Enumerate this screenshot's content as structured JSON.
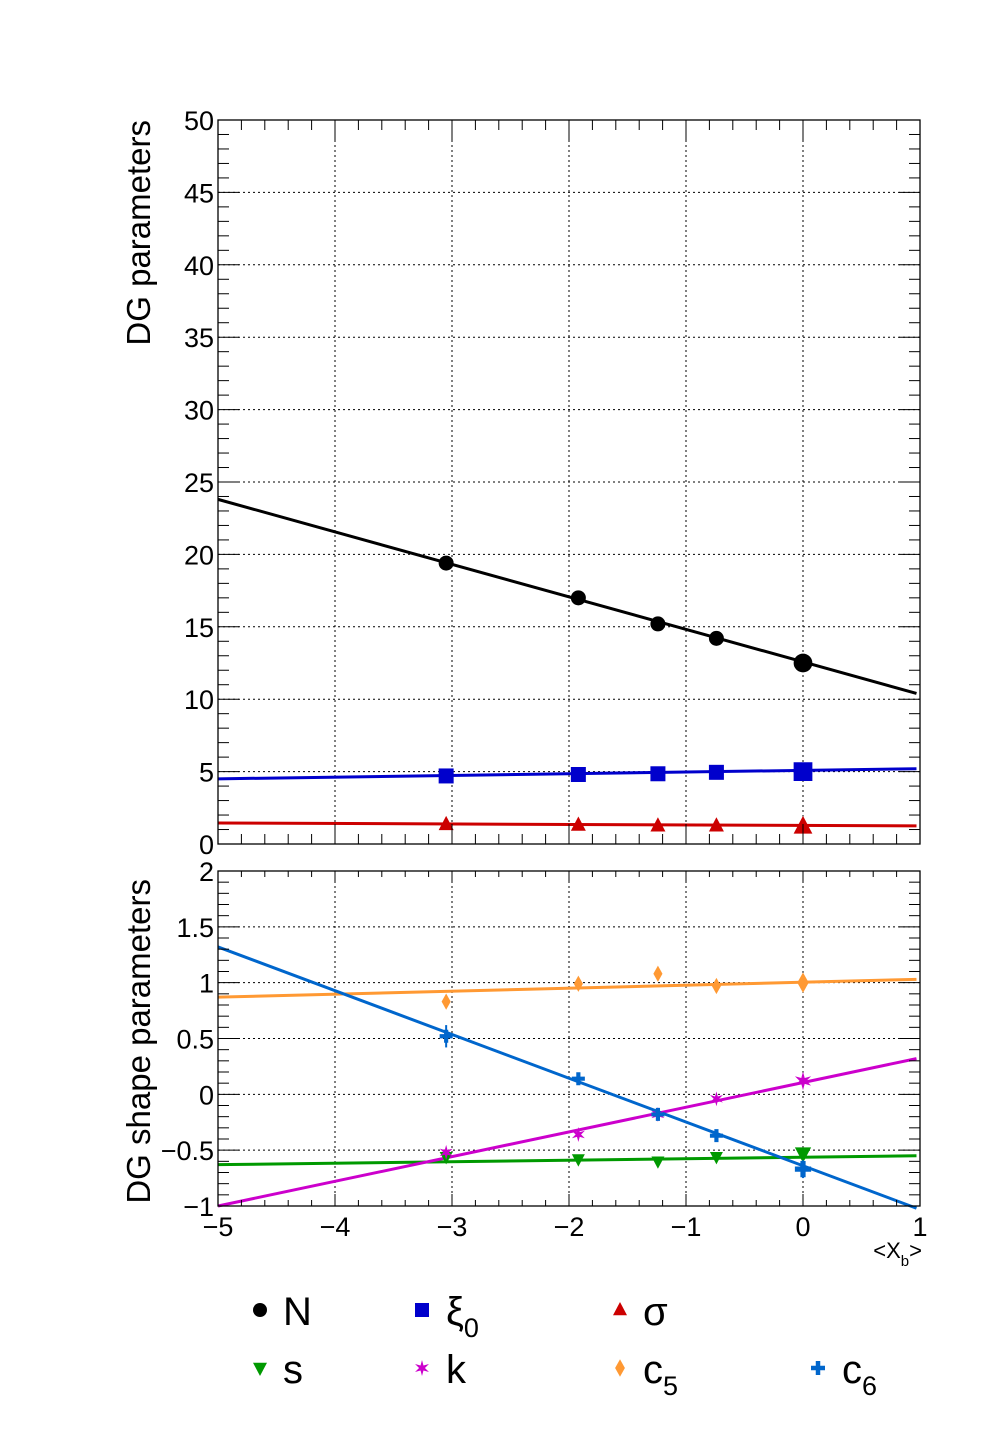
{
  "chart_data": [
    {
      "type": "scatter",
      "ylabel": "DG parameters",
      "xlim": [
        -5,
        1
      ],
      "ylim": [
        0,
        50
      ],
      "grid": true,
      "x_ticks": [
        "−5",
        "−4",
        "−3",
        "−2",
        "−1",
        "0",
        "1"
      ],
      "y_ticks": [
        "0",
        "5",
        "10",
        "15",
        "20",
        "25",
        "30",
        "35",
        "40",
        "45",
        "50"
      ],
      "x": [
        -3.05,
        -1.92,
        -1.24,
        -0.74,
        0.0
      ],
      "series": [
        {
          "name": "N",
          "marker": "circle",
          "color": "#000000",
          "values": [
            19.4,
            17.0,
            15.2,
            14.2,
            12.5
          ],
          "errors": [
            0.3,
            0.3,
            0.3,
            0.3,
            0.6
          ],
          "fit": {
            "x": [
              -5,
              0.97
            ],
            "y": [
              23.8,
              10.4
            ]
          }
        },
        {
          "name": "ξ",
          "sub": "0",
          "marker": "square",
          "color": "#0000cc",
          "values": [
            4.7,
            4.8,
            4.85,
            4.95,
            5.0
          ],
          "errors": [
            0.2,
            0.2,
            0.2,
            0.2,
            0.5
          ],
          "fit": {
            "x": [
              -5,
              0.97
            ],
            "y": [
              4.5,
              5.2
            ]
          }
        },
        {
          "name": "σ",
          "marker": "triangle-up",
          "color": "#cc0000",
          "values": [
            1.35,
            1.3,
            1.25,
            1.25,
            1.2
          ],
          "errors": [
            0.1,
            0.1,
            0.1,
            0.1,
            0.3
          ],
          "fit": {
            "x": [
              -5,
              0.97
            ],
            "y": [
              1.45,
              1.25
            ]
          }
        }
      ]
    },
    {
      "type": "scatter",
      "ylabel": "DG shape parameters",
      "xlabel": "<X",
      "xlabel_sub": "b",
      "xlabel_suffix": ">",
      "xlim": [
        -5,
        1
      ],
      "ylim": [
        -1,
        2
      ],
      "grid": true,
      "x_ticks": [
        "−5",
        "−4",
        "−3",
        "−2",
        "−1",
        "0",
        "1"
      ],
      "y_ticks": [
        "−1",
        "−0.5",
        "0",
        "0.5",
        "1",
        "1.5",
        "2"
      ],
      "x": [
        -3.05,
        -1.92,
        -1.24,
        -0.74,
        0.0
      ],
      "series": [
        {
          "name": "s",
          "marker": "triangle-down",
          "color": "#009900",
          "values": [
            -0.56,
            -0.58,
            -0.6,
            -0.56,
            -0.53
          ],
          "errors": [
            0.03,
            0.03,
            0.03,
            0.03,
            0.05
          ],
          "fit": {
            "x": [
              -5,
              0.97
            ],
            "y": [
              -0.63,
              -0.55
            ]
          }
        },
        {
          "name": "k",
          "marker": "star",
          "color": "#cc00cc",
          "values": [
            -0.52,
            -0.36,
            -0.18,
            -0.04,
            0.12
          ],
          "errors": [
            0.03,
            0.03,
            0.03,
            0.03,
            0.05
          ],
          "fit": {
            "x": [
              -5,
              0.97
            ],
            "y": [
              -1.0,
              0.32
            ]
          }
        },
        {
          "name": "c",
          "sub": "5",
          "marker": "diamond",
          "color": "#ff9933",
          "values": [
            0.83,
            0.99,
            1.08,
            0.97,
            1.0
          ],
          "errors": [
            0.03,
            0.03,
            0.03,
            0.03,
            0.05
          ],
          "fit": {
            "x": [
              -5,
              0.97
            ],
            "y": [
              0.87,
              1.03
            ]
          }
        },
        {
          "name": "c",
          "sub": "6",
          "marker": "cross",
          "color": "#0066cc",
          "values": [
            0.52,
            0.14,
            -0.18,
            -0.37,
            -0.67
          ],
          "errors": [
            0.1,
            0.05,
            0.05,
            0.05,
            0.08
          ],
          "fit": {
            "x": [
              -5,
              0.97
            ],
            "y": [
              1.32,
              -1.02
            ]
          }
        }
      ]
    }
  ]
}
